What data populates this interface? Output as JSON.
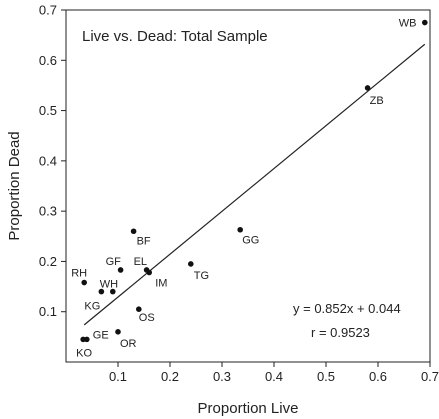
{
  "chart_data": {
    "type": "scatter",
    "title": "Live vs. Dead: Total Sample",
    "xlabel": "Proportion Live",
    "ylabel": "Proportion Dead",
    "xlim": [
      0,
      0.7
    ],
    "ylim": [
      0,
      0.7
    ],
    "xticks": [
      "0.1",
      "0.2",
      "0.3",
      "0.4",
      "0.5",
      "0.6",
      "0.7"
    ],
    "yticks": [
      "0.1",
      "0.2",
      "0.3",
      "0.4",
      "0.5",
      "0.6",
      "0.7"
    ],
    "grid": false,
    "points": [
      {
        "label": "WB",
        "x": 0.69,
        "y": 0.675
      },
      {
        "label": "ZB",
        "x": 0.58,
        "y": 0.545
      },
      {
        "label": "GG",
        "x": 0.335,
        "y": 0.263
      },
      {
        "label": "BF",
        "x": 0.13,
        "y": 0.26
      },
      {
        "label": "TG",
        "x": 0.24,
        "y": 0.195
      },
      {
        "label": "IM",
        "x": 0.16,
        "y": 0.178
      },
      {
        "label": "EL",
        "x": 0.155,
        "y": 0.183
      },
      {
        "label": "GF",
        "x": 0.105,
        "y": 0.183
      },
      {
        "label": "RH",
        "x": 0.035,
        "y": 0.158
      },
      {
        "label": "WH",
        "x": 0.09,
        "y": 0.14
      },
      {
        "label": "KG",
        "x": 0.068,
        "y": 0.14
      },
      {
        "label": "OS",
        "x": 0.14,
        "y": 0.105
      },
      {
        "label": "OR",
        "x": 0.1,
        "y": 0.06
      },
      {
        "label": "GE",
        "x": 0.04,
        "y": 0.045
      },
      {
        "label": "KO",
        "x": 0.033,
        "y": 0.045
      }
    ],
    "fit": {
      "slope": 0.852,
      "intercept": 0.044,
      "x_range": [
        0.035,
        0.69
      ],
      "equation": "y = 0.852x + 0.044",
      "r_text": "r = 0.9523"
    }
  }
}
